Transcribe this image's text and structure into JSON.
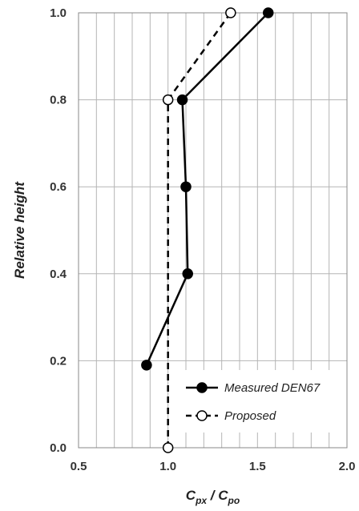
{
  "chart_data": {
    "type": "line",
    "xlabel": "C",
    "xlabel_sub1": "px",
    "xlabel_sep": " / C",
    "xlabel_sub2": "po",
    "ylabel": "Relative height",
    "xlim": [
      0.5,
      2.0
    ],
    "ylim": [
      0.0,
      1.0
    ],
    "x_ticks": [
      "0.5",
      "1.0",
      "1.5",
      "2.0"
    ],
    "y_ticks": [
      "0.0",
      "0.2",
      "0.4",
      "0.6",
      "0.8",
      "1.0"
    ],
    "x_minor_step": 0.1,
    "y_minor_step": 0.1,
    "grid": true,
    "legend_position": "bottom-right",
    "series": [
      {
        "name": "Measured DEN67",
        "style": "solid",
        "marker": "filled-circle",
        "color": "#000000",
        "points": [
          {
            "x": 0.88,
            "y": 0.19
          },
          {
            "x": 1.11,
            "y": 0.4
          },
          {
            "x": 1.1,
            "y": 0.6
          },
          {
            "x": 1.08,
            "y": 0.8
          },
          {
            "x": 1.56,
            "y": 1.0
          }
        ]
      },
      {
        "name": "Proposed",
        "style": "dashed",
        "marker": "open-circle",
        "color": "#000000",
        "points": [
          {
            "x": 1.0,
            "y": 0.0
          },
          {
            "x": 1.0,
            "y": 0.8
          },
          {
            "x": 1.35,
            "y": 1.0
          }
        ]
      }
    ]
  }
}
